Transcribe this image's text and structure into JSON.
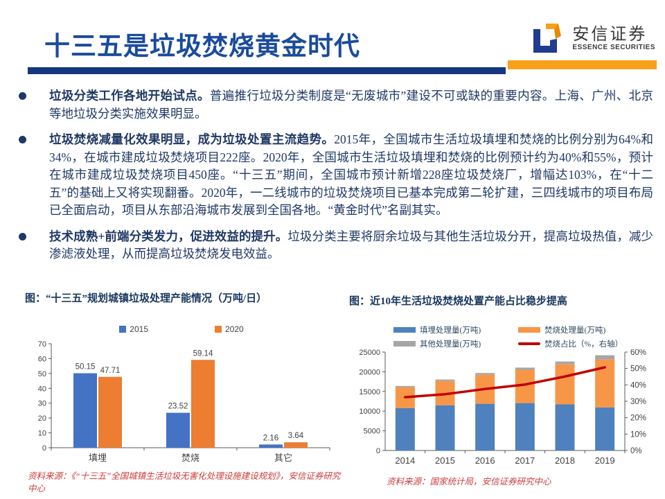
{
  "slide": {
    "title": "十三五是垃圾焚烧黄金时代",
    "logo": {
      "name": "安信证券",
      "subtitle": "ESSENCE SECURITIES"
    },
    "colors": {
      "title_blue": "#1A4B9C",
      "rule_navy": "#14377D",
      "rule_orange": "#F7A11A",
      "body_text": "#1F3864",
      "source_red": "#CC3B3B"
    },
    "bullets": [
      {
        "bold": "垃圾分类工作各地开始试点。",
        "text": "普遍推行垃圾分类制度是“无废城市”建设不可或缺的重要内容。上海、广州、北京等地垃圾分类实施效果明显。"
      },
      {
        "bold": "垃圾焚烧减量化效果明显，成为垃圾处置主流趋势。",
        "text": "2015年，全国城市生活垃圾填埋和焚烧的比例分别为64%和34%，在城市建成垃圾焚烧项目222座。2020年，全国城市生活垃圾填埋和焚烧的比例预计约为40%和55%，预计在城市建成垃圾焚烧项目450座。“十三五”期间，全国城市预计新增228座垃圾焚烧厂，增幅达103%，在“十二五”的基础上又将实现翻番。2020年，一二线城市的垃圾焚烧项目已基本完成第二轮扩建，三四线城市的项目布局已全面启动，项目从东部沿海城市发展到全国各地。“黄金时代”名副其实。"
      },
      {
        "bold": "技术成熟+前端分类发力，促进效益的提升。",
        "text": "垃圾分类主要将厨余垃圾与其他生活垃圾分开，提高垃圾热值，减少渗滤液处理，从而提高垃圾焚烧发电效益。"
      }
    ],
    "sources": {
      "left": "资料来源：《“十三五”全国城镇生活垃圾无害化处理设施建设规划》，安信证券研究中心",
      "right": "资料来源：国家统计局，安信证券研究中心"
    }
  },
  "chart_data": [
    {
      "type": "bar",
      "title": "图：“十三五”规划城镇垃圾处理产能情况（万吨/日）",
      "categories": [
        "填埋",
        "焚烧",
        "其它"
      ],
      "series": [
        {
          "name": "2015",
          "color": "#4472C4",
          "values": [
            50.15,
            23.52,
            2.16
          ]
        },
        {
          "name": "2020",
          "color": "#ED7D31",
          "values": [
            47.71,
            59.14,
            3.64
          ]
        }
      ],
      "ylim": [
        0,
        70
      ],
      "yticks": [
        0,
        10,
        20,
        30,
        40,
        50,
        60,
        70
      ],
      "grid": false,
      "legend_position": "top",
      "data_labels": true
    },
    {
      "type": "bar",
      "stacked": true,
      "title": "图：近10年生活垃圾焚烧处置产能占比稳步提高",
      "categories": [
        "2014",
        "2015",
        "2016",
        "2017",
        "2018",
        "2019"
      ],
      "series": [
        {
          "name": "填埋处理量(万吨)",
          "color": "#4E81BD",
          "values": [
            10744,
            11483,
            11866,
            12038,
            11706,
            10948
          ]
        },
        {
          "name": "焚烧处理量(万吨)",
          "color": "#F79646",
          "values": [
            5330,
            6176,
            7378,
            8463,
            10185,
            12174
          ]
        },
        {
          "name": "其他处理量(万吨)",
          "color": "#A6A6A6",
          "values": [
            320,
            370,
            440,
            551,
            718,
            1069
          ]
        }
      ],
      "line_series": {
        "name": "焚烧占比（%，右轴）",
        "color": "#C00000",
        "axis": "right",
        "values": [
          32.5,
          34.3,
          37.5,
          40.2,
          45.1,
          50.7
        ]
      },
      "ylim_left": [
        0,
        25000
      ],
      "yticks_left": [
        0,
        5000,
        10000,
        15000,
        20000,
        25000
      ],
      "ylim_right": [
        0,
        60
      ],
      "yticks_right": [
        "0%",
        "10%",
        "20%",
        "30%",
        "40%",
        "50%",
        "60%"
      ],
      "grid": false,
      "legend_position": "top"
    }
  ]
}
